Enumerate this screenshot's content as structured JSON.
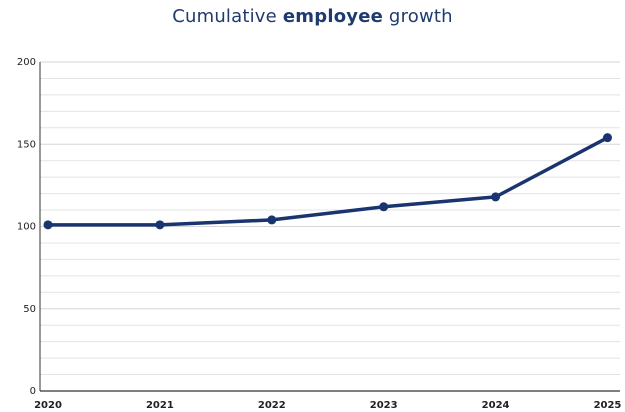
{
  "title": {
    "part1": "Cumulative ",
    "part2": "employee",
    "part3": " growth"
  },
  "colors": {
    "line": "#1a3470",
    "title": "#1f3a6e",
    "grid": "#e3e3e3",
    "axis": "#333333"
  },
  "chart_data": {
    "type": "line",
    "title": "Cumulative employee growth",
    "xlabel": "",
    "ylabel": "",
    "x": [
      "2020",
      "2021",
      "2022",
      "2023",
      "2024",
      "2025"
    ],
    "series": [
      {
        "values": [
          101,
          101,
          104,
          112,
          118,
          154
        ]
      }
    ],
    "ylim": [
      0,
      200
    ],
    "yticks": [
      0,
      50,
      100,
      150,
      200
    ],
    "grid": true
  }
}
